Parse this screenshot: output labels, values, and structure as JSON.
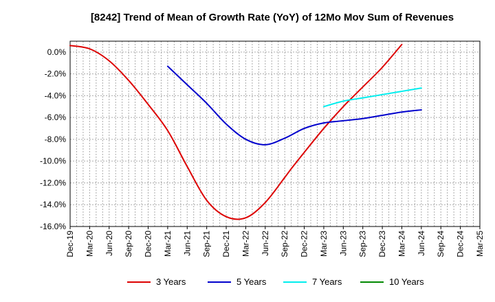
{
  "chart_data": {
    "type": "line",
    "title": "[8242]  Trend of Mean of Growth Rate (YoY) of 12Mo Mov Sum of Revenues",
    "xlabel": "",
    "ylabel": "",
    "ylim": [
      -16,
      1
    ],
    "yticks": [
      0,
      -2,
      -4,
      -6,
      -8,
      -10,
      -12,
      -14,
      -16
    ],
    "ytick_labels": [
      "0.0%",
      "-2.0%",
      "-4.0%",
      "-6.0%",
      "-8.0%",
      "-10.0%",
      "-12.0%",
      "-14.0%",
      "-16.0%"
    ],
    "x_range": [
      0,
      63
    ],
    "xtick_labels": [
      "Dec-19",
      "Mar-20",
      "Jun-20",
      "Sep-20",
      "Dec-20",
      "Mar-21",
      "Jun-21",
      "Sep-21",
      "Dec-21",
      "Mar-22",
      "Jun-22",
      "Sep-22",
      "Dec-22",
      "Mar-23",
      "Jun-23",
      "Sep-23",
      "Dec-23",
      "Mar-24",
      "Jun-24",
      "Sep-24",
      "Dec-24",
      "Mar-25"
    ],
    "grid": true,
    "legend_position": "bottom",
    "series": [
      {
        "name": "3 Years",
        "color": "#dd0000",
        "x": [
          0,
          3,
          6,
          9,
          12,
          15,
          18,
          21,
          24,
          27,
          30,
          33,
          34,
          36,
          39,
          42,
          45,
          48,
          51,
          54,
          57,
          60
        ],
        "values": [
          0.6,
          0.3,
          -0.8,
          -2.6,
          -4.8,
          -7.2,
          -10.5,
          -13.6,
          -15.1,
          -15.2,
          -13.8,
          -11.5,
          -10.7,
          -9.2,
          -7.0,
          -5.0,
          -3.2,
          -1.4,
          0.7,
          null,
          null,
          null
        ]
      },
      {
        "name": "5 Years",
        "color": "#0000cc",
        "x": [
          15,
          18,
          21,
          24,
          27,
          30,
          33,
          36,
          39,
          42,
          45,
          48,
          51,
          54,
          57,
          60
        ],
        "values": [
          -1.3,
          -3.0,
          -4.7,
          -6.6,
          -8.0,
          -8.5,
          -7.9,
          -7.0,
          -6.5,
          -6.3,
          -6.1,
          -5.8,
          -5.5,
          -5.3,
          null,
          null
        ]
      },
      {
        "name": "7 Years",
        "color": "#00eeee",
        "x": [
          39,
          42,
          45,
          48,
          51,
          54,
          57,
          60
        ],
        "values": [
          -5.0,
          -4.5,
          -4.2,
          -3.9,
          -3.6,
          -3.3,
          null,
          null
        ]
      },
      {
        "name": "10 Years",
        "color": "#008800",
        "x": [],
        "values": []
      }
    ]
  }
}
